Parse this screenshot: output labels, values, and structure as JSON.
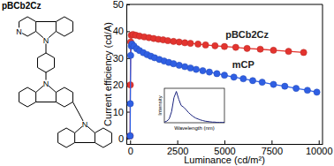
{
  "structure": {
    "label": "pBCb2Cz",
    "atom_labels": [
      "N",
      "N",
      "N",
      "N"
    ]
  },
  "chart_data": [
    {
      "type": "line",
      "xlabel": "Luminance (cd/m²)",
      "ylabel": "Current efficiency (cd/A)",
      "xlim": [
        -200,
        10200
      ],
      "ylim": [
        -2,
        50
      ],
      "xticks": [
        0,
        2500,
        5000,
        7500,
        10000
      ],
      "yticks": [
        0,
        10,
        20,
        30,
        40,
        50
      ],
      "grid": false,
      "series": [
        {
          "name": "pBCb2Cz",
          "color": "#e3342f",
          "marker": "circle",
          "line_style": "solid",
          "x": [
            2,
            10,
            30,
            60,
            150,
            300,
            500,
            750,
            1000,
            1250,
            1500,
            1750,
            2000,
            2300,
            2600,
            2900,
            3200,
            3600,
            4000,
            4500,
            5000,
            5600,
            6200,
            6900,
            7600,
            8400,
            9200
          ],
          "values": [
            1,
            20,
            36,
            38.5,
            38.8,
            38.5,
            38.2,
            37.9,
            37.6,
            37.3,
            37.0,
            36.8,
            36.5,
            36.2,
            36.0,
            35.7,
            35.5,
            35.2,
            34.9,
            34.6,
            34.3,
            34.0,
            33.6,
            33.3,
            32.9,
            32.5,
            32.1
          ]
        },
        {
          "name": "mCP",
          "color": "#2f5fe3",
          "marker": "circle",
          "line_style": "solid",
          "x": [
            2,
            10,
            30,
            60,
            100,
            200,
            350,
            500,
            700,
            900,
            1100,
            1300,
            1550,
            1800,
            2050,
            2300,
            2600,
            2900,
            3200,
            3500,
            3850,
            4200,
            4600,
            5000,
            5500,
            6000,
            6500,
            7000,
            7600,
            8200,
            8800,
            9400,
            9900
          ],
          "values": [
            1,
            13,
            31,
            34.5,
            35.2,
            34.5,
            33.5,
            32.8,
            32,
            31.3,
            30.7,
            30.1,
            29.5,
            28.9,
            28.4,
            27.9,
            27.3,
            26.8,
            26.3,
            25.8,
            25.3,
            24.8,
            24.2,
            23.6,
            22.9,
            22.3,
            21.6,
            21.0,
            20.2,
            19.5,
            18.7,
            18.0,
            17.3
          ]
        }
      ]
    },
    {
      "type": "line",
      "xlabel": "Wavelength (nm)",
      "ylabel": "Intensity",
      "xlim": [
        400,
        650
      ],
      "ylim": [
        0,
        1.1
      ],
      "tick_labels": false,
      "color": "#1a237e",
      "x": [
        400,
        410,
        420,
        430,
        440,
        450,
        460,
        470,
        480,
        490,
        500,
        510,
        520,
        530,
        540,
        550,
        560,
        570,
        580,
        590,
        600,
        610,
        620,
        630,
        640,
        650
      ],
      "values": [
        0.02,
        0.05,
        0.12,
        0.35,
        0.8,
        1.0,
        0.75,
        0.55,
        0.5,
        0.42,
        0.33,
        0.26,
        0.2,
        0.15,
        0.12,
        0.09,
        0.07,
        0.05,
        0.04,
        0.03,
        0.02,
        0.02,
        0.01,
        0.01,
        0.01,
        0.01
      ]
    }
  ]
}
